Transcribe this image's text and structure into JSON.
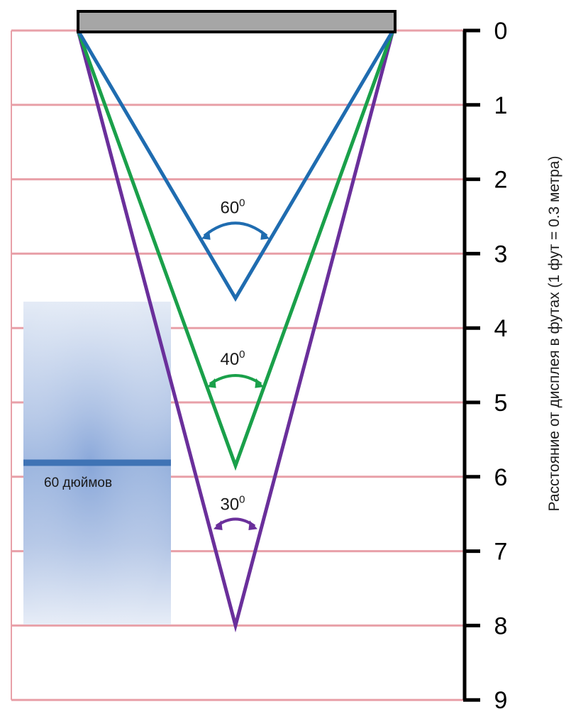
{
  "diagram": {
    "axis": {
      "title": "Расстояние от дисплея в футах (1 фут = 0.3 метра)",
      "min": 0,
      "max": 9,
      "ticks": [
        "0",
        "1",
        "2",
        "3",
        "4",
        "5",
        "6",
        "7",
        "8",
        "9"
      ]
    },
    "angles": [
      {
        "label": "60",
        "sup": "0",
        "apex_ft": 3.6,
        "color": "#1f6cb0"
      },
      {
        "label": "40",
        "sup": "0",
        "apex_ft": 5.85,
        "color": "#1aa04a"
      },
      {
        "label": "30",
        "sup": "0",
        "apex_ft": 8.0,
        "color": "#6a2f9b"
      }
    ],
    "person": {
      "label": "60 дюймов"
    },
    "colors": {
      "gridline": "#e8a0a8",
      "screen_fill": "#a6a6a6",
      "screen_stroke": "#000000",
      "axis": "#000000",
      "eye_level": "#3f73b5"
    }
  }
}
